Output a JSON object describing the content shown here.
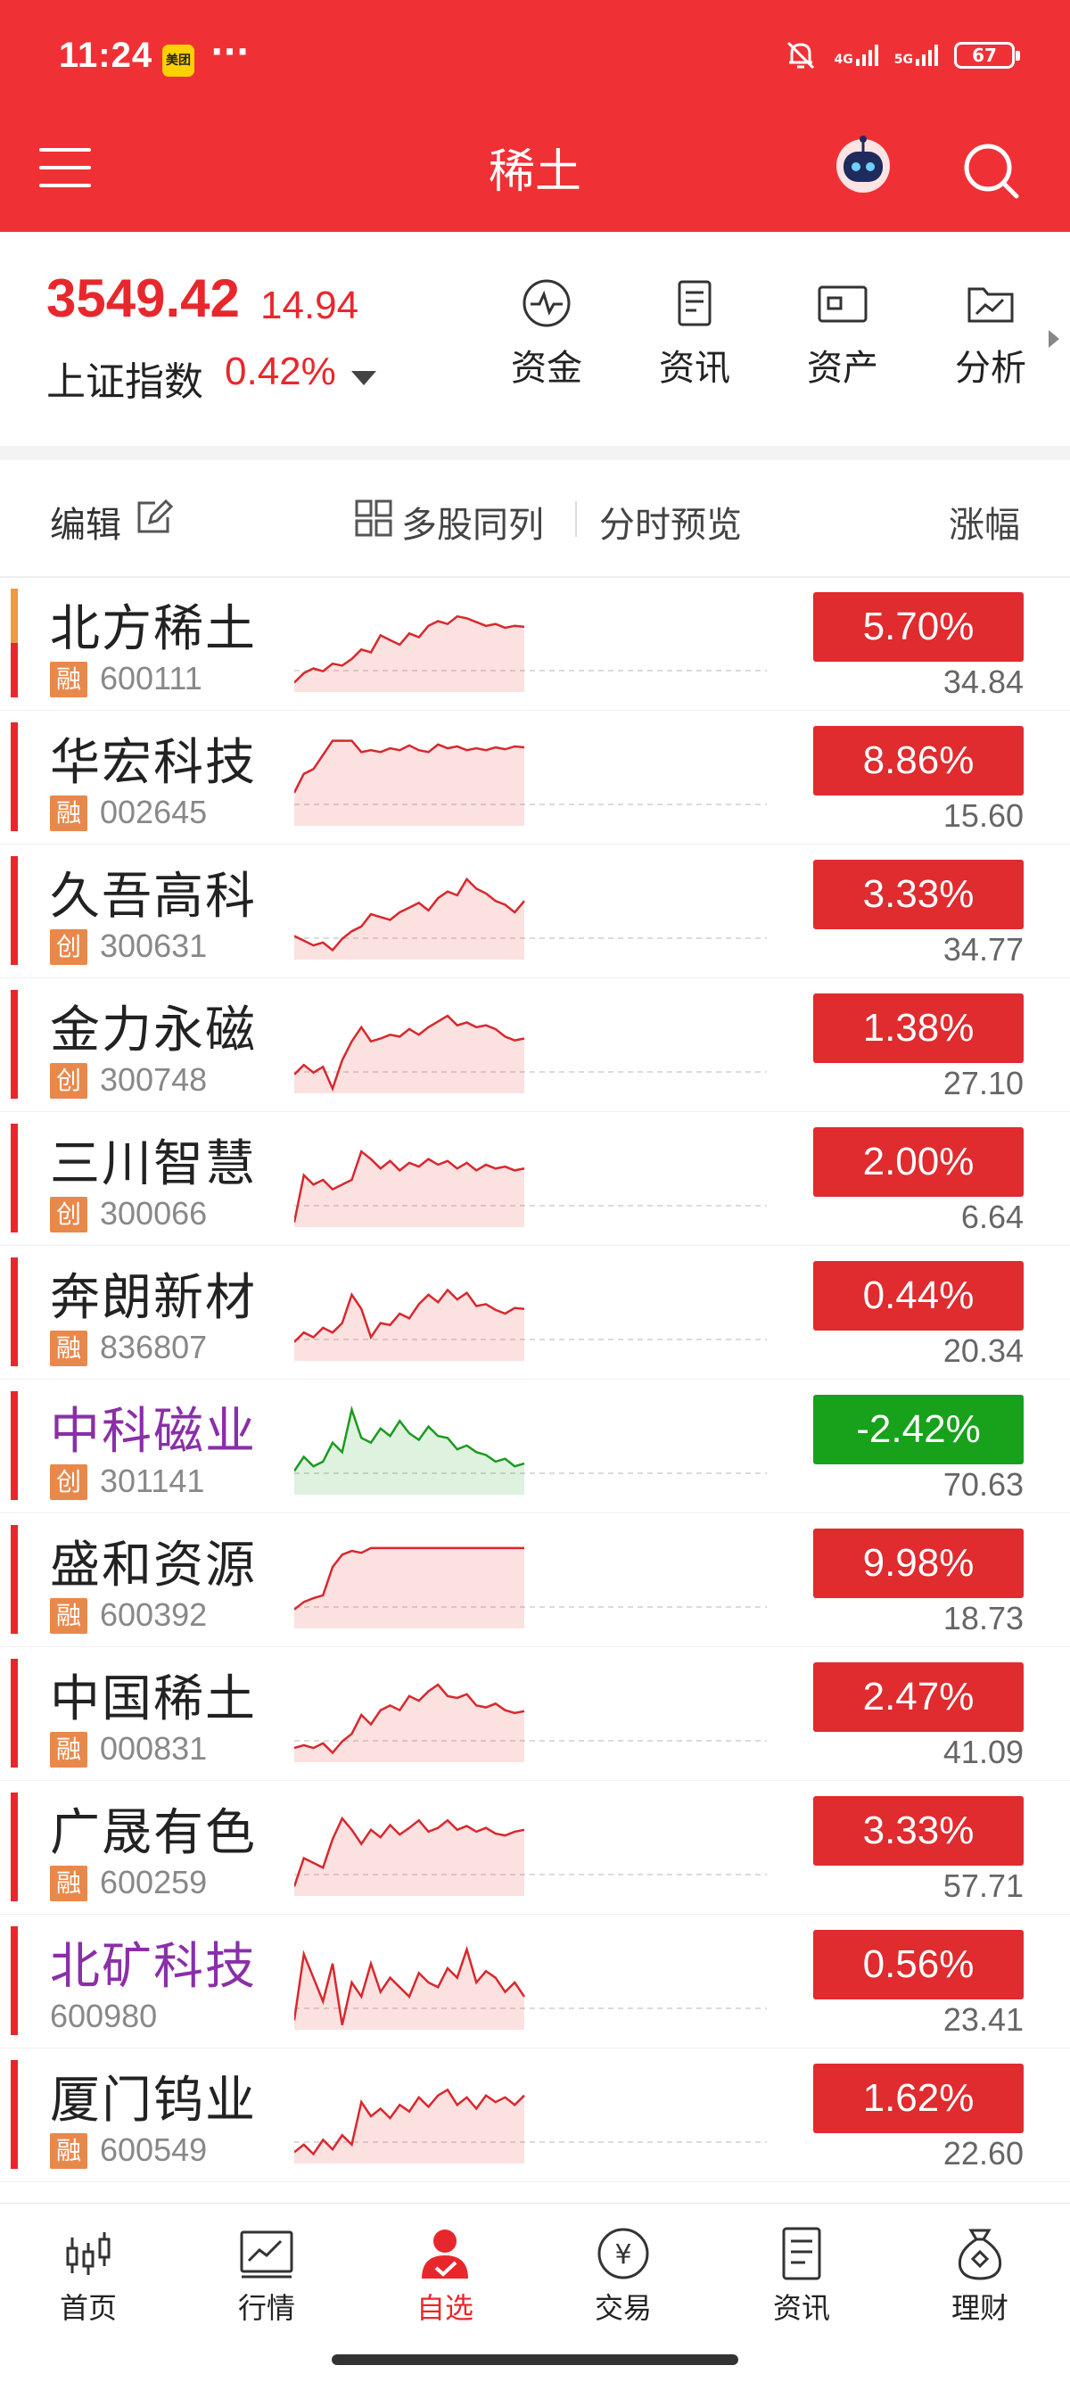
{
  "status_bar": {
    "time": "11:24",
    "app_badge": "美团",
    "more": "···",
    "network_1": "4G",
    "network_2": "5G",
    "battery": "67"
  },
  "header": {
    "title": "稀土"
  },
  "index": {
    "price": "3549.42",
    "change": "14.94",
    "name": "上证指数",
    "percent": "0.42%"
  },
  "quick_links": [
    {
      "label": "资金",
      "icon": "pulse-circle-icon"
    },
    {
      "label": "资讯",
      "icon": "document-icon"
    },
    {
      "label": "资产",
      "icon": "wallet-icon"
    },
    {
      "label": "分析",
      "icon": "folder-chart-icon"
    }
  ],
  "list_header": {
    "edit": "编辑",
    "multi": "多股同列",
    "preview": "分时预览",
    "change_col": "涨幅"
  },
  "stocks": [
    {
      "name": "北方稀土",
      "badge": "融",
      "code": "600111",
      "percent": "5.70%",
      "price": "34.84",
      "up": true,
      "bar": "dual",
      "name_color": "default",
      "spark": [
        0.1,
        0.2,
        0.25,
        0.22,
        0.3,
        0.28,
        0.35,
        0.45,
        0.42,
        0.6,
        0.55,
        0.5,
        0.62,
        0.58,
        0.7,
        0.75,
        0.72,
        0.8,
        0.78,
        0.74,
        0.7,
        0.72,
        0.68,
        0.7,
        0.69
      ]
    },
    {
      "name": "华宏科技",
      "badge": "融",
      "code": "002645",
      "percent": "8.86%",
      "price": "15.60",
      "up": true,
      "bar": "red",
      "name_color": "default",
      "spark": [
        0.35,
        0.55,
        0.6,
        0.75,
        0.9,
        0.9,
        0.9,
        0.78,
        0.8,
        0.78,
        0.82,
        0.8,
        0.85,
        0.8,
        0.78,
        0.86,
        0.82,
        0.84,
        0.8,
        0.82,
        0.8,
        0.83,
        0.81,
        0.84,
        0.83
      ]
    },
    {
      "name": "久吾高科",
      "badge": "创",
      "code": "300631",
      "percent": "3.33%",
      "price": "34.77",
      "up": true,
      "bar": "red",
      "name_color": "default",
      "spark": [
        0.25,
        0.2,
        0.15,
        0.18,
        0.1,
        0.22,
        0.3,
        0.35,
        0.48,
        0.45,
        0.42,
        0.5,
        0.55,
        0.6,
        0.52,
        0.65,
        0.72,
        0.68,
        0.85,
        0.75,
        0.7,
        0.62,
        0.58,
        0.5,
        0.62
      ]
    },
    {
      "name": "金力永磁",
      "badge": "创",
      "code": "300748",
      "percent": "1.38%",
      "price": "27.10",
      "up": true,
      "bar": "red",
      "name_color": "default",
      "spark": [
        0.2,
        0.3,
        0.22,
        0.28,
        0.05,
        0.35,
        0.55,
        0.7,
        0.55,
        0.58,
        0.62,
        0.6,
        0.68,
        0.62,
        0.7,
        0.76,
        0.82,
        0.72,
        0.75,
        0.7,
        0.72,
        0.68,
        0.6,
        0.56,
        0.58
      ]
    },
    {
      "name": "三川智慧",
      "badge": "创",
      "code": "300066",
      "percent": "2.00%",
      "price": "6.64",
      "up": true,
      "bar": "red",
      "name_color": "default",
      "spark": [
        0.05,
        0.55,
        0.45,
        0.5,
        0.4,
        0.45,
        0.5,
        0.8,
        0.72,
        0.62,
        0.7,
        0.6,
        0.68,
        0.64,
        0.72,
        0.66,
        0.7,
        0.62,
        0.68,
        0.6,
        0.66,
        0.62,
        0.64,
        0.6,
        0.62
      ]
    },
    {
      "name": "奔朗新材",
      "badge": "融",
      "code": "836807",
      "percent": "0.44%",
      "price": "20.34",
      "up": true,
      "bar": "red",
      "name_color": "default",
      "spark": [
        0.2,
        0.3,
        0.25,
        0.35,
        0.3,
        0.4,
        0.7,
        0.55,
        0.25,
        0.4,
        0.38,
        0.5,
        0.45,
        0.6,
        0.7,
        0.62,
        0.75,
        0.65,
        0.72,
        0.58,
        0.6,
        0.54,
        0.5,
        0.56,
        0.55
      ]
    },
    {
      "name": "中科磁业",
      "badge": "创",
      "code": "301141",
      "percent": "-2.42%",
      "price": "70.63",
      "up": false,
      "bar": "red",
      "name_color": "purple",
      "spark": [
        0.25,
        0.4,
        0.3,
        0.35,
        0.55,
        0.45,
        0.9,
        0.6,
        0.55,
        0.7,
        0.62,
        0.78,
        0.65,
        0.58,
        0.72,
        0.62,
        0.6,
        0.48,
        0.52,
        0.45,
        0.42,
        0.35,
        0.38,
        0.3,
        0.33
      ]
    },
    {
      "name": "盛和资源",
      "badge": "融",
      "code": "600392",
      "percent": "9.98%",
      "price": "18.73",
      "up": true,
      "bar": "red",
      "name_color": "default",
      "spark": [
        0.2,
        0.28,
        0.32,
        0.35,
        0.65,
        0.78,
        0.82,
        0.8,
        0.85,
        0.85,
        0.85,
        0.85,
        0.85,
        0.85,
        0.85,
        0.85,
        0.85,
        0.85,
        0.85,
        0.85,
        0.85,
        0.85,
        0.85,
        0.85,
        0.85
      ]
    },
    {
      "name": "中国稀土",
      "badge": "融",
      "code": "000831",
      "percent": "2.47%",
      "price": "41.09",
      "up": true,
      "bar": "red",
      "name_color": "default",
      "spark": [
        0.15,
        0.18,
        0.15,
        0.2,
        0.1,
        0.22,
        0.3,
        0.5,
        0.4,
        0.55,
        0.6,
        0.55,
        0.7,
        0.65,
        0.75,
        0.82,
        0.7,
        0.68,
        0.72,
        0.6,
        0.58,
        0.62,
        0.55,
        0.52,
        0.54
      ]
    },
    {
      "name": "广晟有色",
      "badge": "融",
      "code": "600259",
      "percent": "3.33%",
      "price": "57.71",
      "up": true,
      "bar": "red",
      "name_color": "default",
      "spark": [
        0.1,
        0.4,
        0.35,
        0.3,
        0.6,
        0.82,
        0.7,
        0.55,
        0.7,
        0.62,
        0.75,
        0.65,
        0.72,
        0.8,
        0.68,
        0.72,
        0.8,
        0.7,
        0.74,
        0.68,
        0.72,
        0.66,
        0.64,
        0.68,
        0.7
      ]
    },
    {
      "name": "北矿科技",
      "badge": "",
      "code": "600980",
      "percent": "0.56%",
      "price": "23.41",
      "up": true,
      "bar": "red",
      "name_color": "purple",
      "spark": [
        0.1,
        0.8,
        0.55,
        0.3,
        0.7,
        0.05,
        0.5,
        0.35,
        0.7,
        0.4,
        0.55,
        0.45,
        0.35,
        0.6,
        0.5,
        0.45,
        0.65,
        0.55,
        0.85,
        0.5,
        0.62,
        0.55,
        0.4,
        0.5,
        0.35
      ]
    },
    {
      "name": "厦门钨业",
      "badge": "融",
      "code": "600549",
      "percent": "1.62%",
      "price": "22.60",
      "up": true,
      "bar": "red",
      "name_color": "default",
      "spark": [
        0.12,
        0.2,
        0.1,
        0.25,
        0.15,
        0.3,
        0.2,
        0.65,
        0.5,
        0.58,
        0.48,
        0.62,
        0.55,
        0.7,
        0.6,
        0.72,
        0.78,
        0.62,
        0.7,
        0.58,
        0.72,
        0.65,
        0.7,
        0.62,
        0.72
      ]
    }
  ],
  "bottom_nav": [
    {
      "label": "首页",
      "icon": "candlestick-icon",
      "active": false
    },
    {
      "label": "行情",
      "icon": "line-chart-icon",
      "active": false
    },
    {
      "label": "自选",
      "icon": "person-check-icon",
      "active": true
    },
    {
      "label": "交易",
      "icon": "yen-coin-icon",
      "active": false
    },
    {
      "label": "资讯",
      "icon": "news-icon",
      "active": false
    },
    {
      "label": "理财",
      "icon": "money-bag-icon",
      "active": false
    }
  ],
  "colors": {
    "brand_red": "#ef3136",
    "up": "#e02b2f",
    "down": "#18a11b",
    "purple": "#8a2fa8"
  }
}
